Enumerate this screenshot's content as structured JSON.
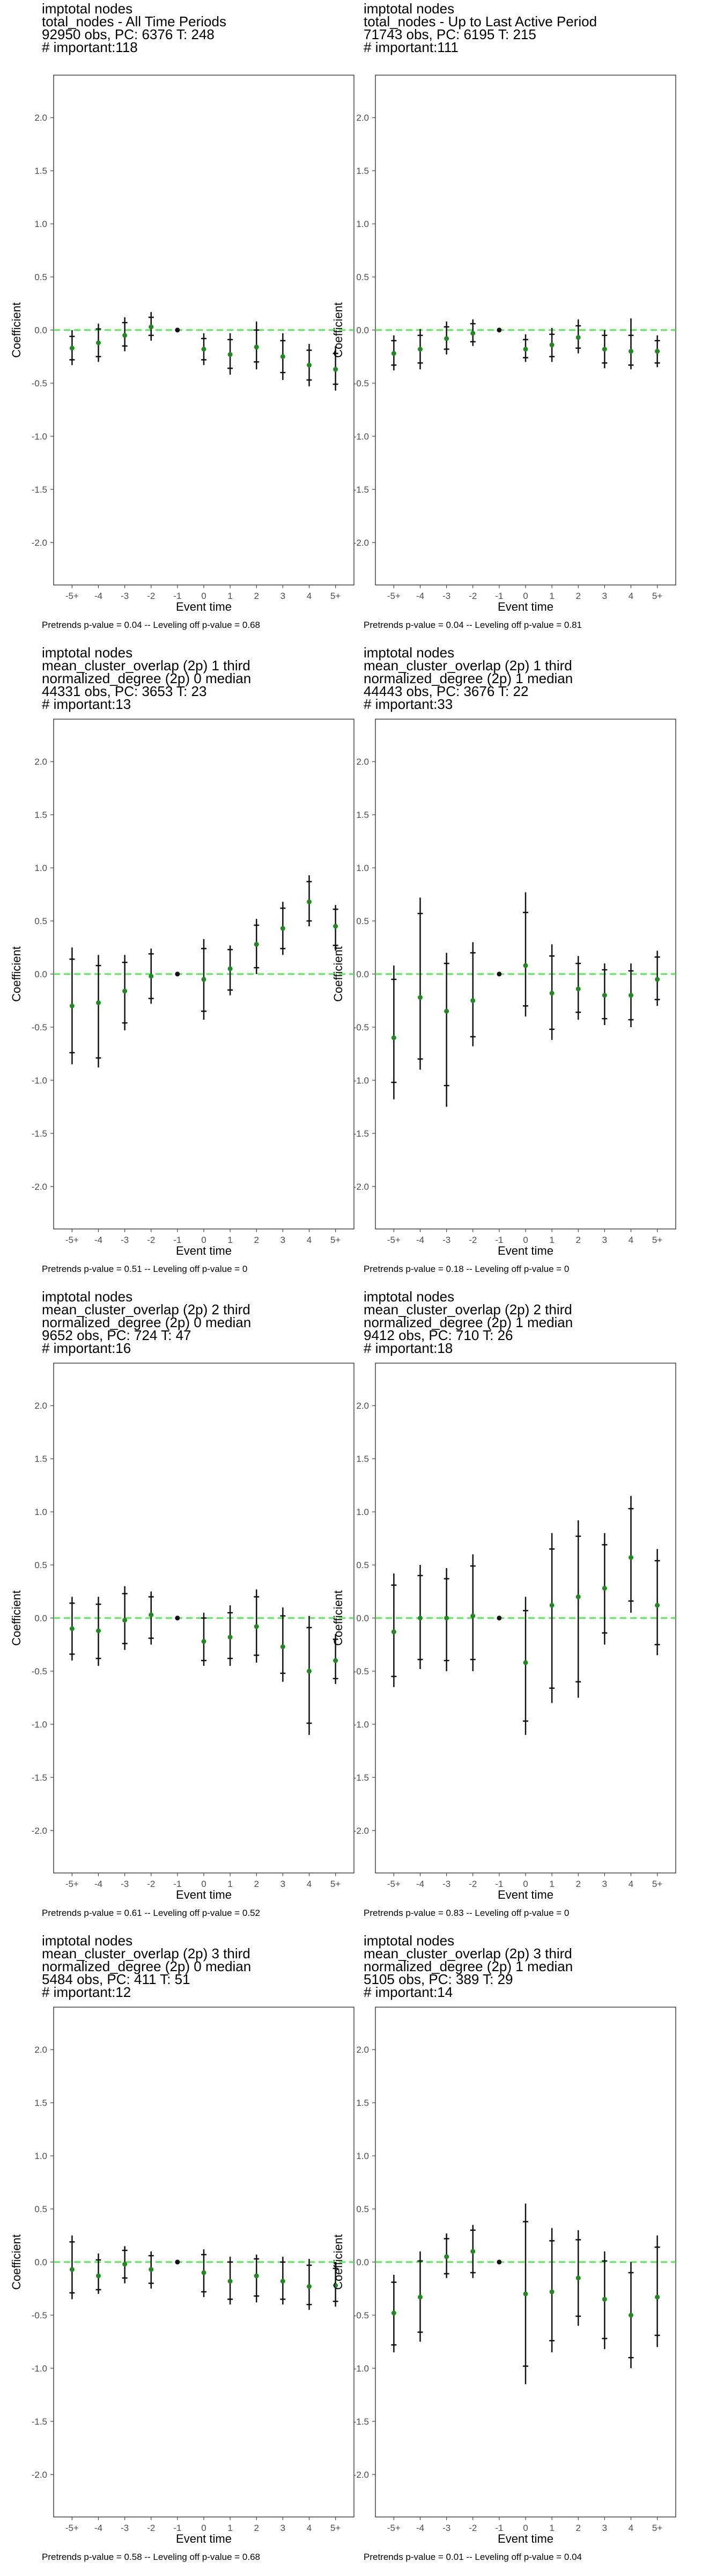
{
  "chart_data": [
    {
      "type": "scatter",
      "title_lines": [
        " imptotal nodes",
        "total_nodes - All Time Periods",
        "92950 obs, PC: 6376 T: 248",
        "# important:118"
      ],
      "xlabel": "Event time",
      "ylabel": "Coefficient",
      "categories": [
        "-5+",
        "-4",
        "-3",
        "-2",
        "-1",
        "0",
        "1",
        "2",
        "3",
        "4",
        "5+"
      ],
      "ylim": [
        -2.4,
        2.4
      ],
      "yticks": [
        "2.0",
        "1.5",
        "1.0",
        "0.5",
        "0.0",
        "-0.5",
        "-1.0",
        "-1.5",
        "-2.0"
      ],
      "estimates": [
        -0.17,
        -0.12,
        -0.05,
        0.03,
        0.0,
        -0.18,
        -0.23,
        -0.16,
        -0.25,
        -0.33,
        -0.37
      ],
      "ci95": [
        [
          -0.33,
          0.0
        ],
        [
          -0.3,
          0.06
        ],
        [
          -0.2,
          0.12
        ],
        [
          -0.1,
          0.17
        ],
        [
          0.0,
          0.0
        ],
        [
          -0.33,
          -0.03
        ],
        [
          -0.42,
          -0.03
        ],
        [
          -0.37,
          0.08
        ],
        [
          -0.47,
          -0.03
        ],
        [
          -0.53,
          -0.13
        ],
        [
          -0.57,
          -0.15
        ]
      ],
      "ci90": [
        [
          -0.28,
          -0.06
        ],
        [
          -0.25,
          0.01
        ],
        [
          -0.15,
          0.07
        ],
        [
          -0.05,
          0.12
        ],
        [
          0.0,
          0.0
        ],
        [
          -0.28,
          -0.08
        ],
        [
          -0.36,
          -0.09
        ],
        [
          -0.3,
          0.0
        ],
        [
          -0.4,
          -0.1
        ],
        [
          -0.47,
          -0.19
        ],
        [
          -0.51,
          -0.22
        ]
      ],
      "reference_line": 0.0,
      "footnote": "Pretrends p-value = 0.04 -- Leveling off p-value = 0.68"
    },
    {
      "type": "scatter",
      "title_lines": [
        " imptotal nodes",
        "total_nodes - Up to Last Active Period",
        "71743 obs, PC: 6195 T: 215",
        "# important:111"
      ],
      "xlabel": "Event time",
      "ylabel": "Coefficient",
      "categories": [
        "-5+",
        "-4",
        "-3",
        "-2",
        "-1",
        "0",
        "1",
        "2",
        "3",
        "4",
        "5+"
      ],
      "ylim": [
        -2.4,
        2.4
      ],
      "yticks": [
        "2.0",
        "1.5",
        "1.0",
        "0.5",
        "0.0",
        "-0.5",
        "-1.0",
        "-1.5",
        "-2.0"
      ],
      "estimates": [
        -0.22,
        -0.18,
        -0.08,
        -0.03,
        0.0,
        -0.18,
        -0.14,
        -0.07,
        -0.18,
        -0.2,
        -0.2
      ],
      "ci95": [
        [
          -0.38,
          -0.05
        ],
        [
          -0.37,
          0.01
        ],
        [
          -0.23,
          0.08
        ],
        [
          -0.15,
          0.1
        ],
        [
          0.0,
          0.0
        ],
        [
          -0.3,
          -0.04
        ],
        [
          -0.3,
          0.02
        ],
        [
          -0.22,
          0.1
        ],
        [
          -0.36,
          0.0
        ],
        [
          -0.37,
          0.11
        ],
        [
          -0.35,
          -0.05
        ]
      ],
      "ci90": [
        [
          -0.33,
          -0.1
        ],
        [
          -0.31,
          -0.05
        ],
        [
          -0.18,
          0.03
        ],
        [
          -0.11,
          0.06
        ],
        [
          0.0,
          0.0
        ],
        [
          -0.26,
          -0.09
        ],
        [
          -0.25,
          -0.04
        ],
        [
          -0.17,
          0.04
        ],
        [
          -0.31,
          -0.05
        ],
        [
          -0.33,
          -0.05
        ],
        [
          -0.31,
          -0.1
        ]
      ],
      "reference_line": 0.0,
      "footnote": "Pretrends p-value = 0.04 -- Leveling off p-value = 0.81"
    },
    {
      "type": "scatter",
      "title_lines": [
        " imptotal nodes",
        "mean_cluster_overlap (2p) 1 third",
        "normalized_degree (2p) 0 median",
        "44331 obs, PC: 3653 T: 23",
        "# important:13"
      ],
      "xlabel": "Event time",
      "ylabel": "Coefficient",
      "categories": [
        "-5+",
        "-4",
        "-3",
        "-2",
        "-1",
        "0",
        "1",
        "2",
        "3",
        "4",
        "5+"
      ],
      "ylim": [
        -2.4,
        2.4
      ],
      "yticks": [
        "2.0",
        "1.5",
        "1.0",
        "0.5",
        "0.0",
        "-0.5",
        "-1.0",
        "-1.5",
        "-2.0"
      ],
      "estimates": [
        -0.3,
        -0.27,
        -0.16,
        -0.02,
        0.0,
        -0.05,
        0.05,
        0.28,
        0.43,
        0.68,
        0.45
      ],
      "ci95": [
        [
          -0.85,
          0.25
        ],
        [
          -0.88,
          0.18
        ],
        [
          -0.53,
          0.18
        ],
        [
          -0.28,
          0.24
        ],
        [
          0.0,
          0.0
        ],
        [
          -0.43,
          0.33
        ],
        [
          -0.2,
          0.27
        ],
        [
          0.0,
          0.52
        ],
        [
          0.18,
          0.68
        ],
        [
          0.45,
          0.93
        ],
        [
          0.22,
          0.65
        ]
      ],
      "ci90": [
        [
          -0.74,
          0.14
        ],
        [
          -0.79,
          0.08
        ],
        [
          -0.46,
          0.11
        ],
        [
          -0.23,
          0.19
        ],
        [
          0.0,
          0.0
        ],
        [
          -0.35,
          0.24
        ],
        [
          -0.15,
          0.23
        ],
        [
          0.06,
          0.46
        ],
        [
          0.24,
          0.62
        ],
        [
          0.5,
          0.87
        ],
        [
          0.27,
          0.61
        ]
      ],
      "reference_line": 0.0,
      "footnote": "Pretrends p-value = 0.51 -- Leveling off p-value = 0"
    },
    {
      "type": "scatter",
      "title_lines": [
        " imptotal nodes",
        "mean_cluster_overlap (2p) 1 third",
        "normalized_degree (2p) 1 median",
        "44443 obs, PC: 3676 T: 22",
        "# important:33"
      ],
      "xlabel": "Event time",
      "ylabel": "Coefficient",
      "categories": [
        "-5+",
        "-4",
        "-3",
        "-2",
        "-1",
        "0",
        "1",
        "2",
        "3",
        "4",
        "5+"
      ],
      "ylim": [
        -2.4,
        2.4
      ],
      "yticks": [
        "2.0",
        "1.5",
        "1.0",
        "0.5",
        "0.0",
        "-0.5",
        "-1.0",
        "-1.5",
        "-2.0"
      ],
      "estimates": [
        -0.6,
        -0.22,
        -0.35,
        -0.25,
        0.0,
        0.08,
        -0.18,
        -0.14,
        -0.2,
        -0.2,
        -0.05
      ],
      "ci95": [
        [
          -1.18,
          0.08
        ],
        [
          -0.9,
          0.72
        ],
        [
          -1.25,
          0.2
        ],
        [
          -0.68,
          0.3
        ],
        [
          0.0,
          0.0
        ],
        [
          -0.4,
          0.77
        ],
        [
          -0.62,
          0.28
        ],
        [
          -0.43,
          0.17
        ],
        [
          -0.48,
          0.1
        ],
        [
          -0.5,
          0.1
        ],
        [
          -0.3,
          0.22
        ]
      ],
      "ci90": [
        [
          -1.02,
          -0.05
        ],
        [
          -0.8,
          0.57
        ],
        [
          -1.05,
          0.1
        ],
        [
          -0.59,
          0.2
        ],
        [
          0.0,
          0.0
        ],
        [
          -0.3,
          0.58
        ],
        [
          -0.52,
          0.17
        ],
        [
          -0.36,
          0.1
        ],
        [
          -0.42,
          0.04
        ],
        [
          -0.43,
          0.03
        ],
        [
          -0.24,
          0.16
        ]
      ],
      "reference_line": 0.0,
      "footnote": "Pretrends p-value = 0.18 -- Leveling off p-value = 0"
    },
    {
      "type": "scatter",
      "title_lines": [
        " imptotal nodes",
        "mean_cluster_overlap (2p) 2 third",
        "normalized_degree (2p) 0 median",
        "9652 obs, PC: 724 T: 47",
        "# important:16"
      ],
      "xlabel": "Event time",
      "ylabel": "Coefficient",
      "categories": [
        "-5+",
        "-4",
        "-3",
        "-2",
        "-1",
        "0",
        "1",
        "2",
        "3",
        "4",
        "5+"
      ],
      "ylim": [
        -2.4,
        2.4
      ],
      "yticks": [
        "2.0",
        "1.5",
        "1.0",
        "0.5",
        "0.0",
        "-0.5",
        "-1.0",
        "-1.5",
        "-2.0"
      ],
      "estimates": [
        -0.1,
        -0.12,
        -0.02,
        0.03,
        0.0,
        -0.22,
        -0.18,
        -0.08,
        -0.27,
        -0.5,
        -0.4
      ],
      "ci95": [
        [
          -0.4,
          0.2
        ],
        [
          -0.45,
          0.2
        ],
        [
          -0.3,
          0.3
        ],
        [
          -0.25,
          0.25
        ],
        [
          0.0,
          0.0
        ],
        [
          -0.45,
          0.05
        ],
        [
          -0.45,
          0.12
        ],
        [
          -0.42,
          0.27
        ],
        [
          -0.6,
          0.1
        ],
        [
          -1.1,
          0.02
        ],
        [
          -0.62,
          -0.15
        ]
      ],
      "ci90": [
        [
          -0.34,
          0.14
        ],
        [
          -0.38,
          0.13
        ],
        [
          -0.24,
          0.23
        ],
        [
          -0.19,
          0.2
        ],
        [
          0.0,
          0.0
        ],
        [
          -0.4,
          0.0
        ],
        [
          -0.38,
          0.05
        ],
        [
          -0.35,
          0.2
        ],
        [
          -0.52,
          0.02
        ],
        [
          -0.99,
          -0.09
        ],
        [
          -0.57,
          -0.2
        ]
      ],
      "reference_line": 0.0,
      "footnote": "Pretrends p-value = 0.61 -- Leveling off p-value = 0.52"
    },
    {
      "type": "scatter",
      "title_lines": [
        " imptotal nodes",
        "mean_cluster_overlap (2p) 2 third",
        "normalized_degree (2p) 1 median",
        "9412 obs, PC: 710 T: 26",
        "# important:18"
      ],
      "xlabel": "Event time",
      "ylabel": "Coefficient",
      "categories": [
        "-5+",
        "-4",
        "-3",
        "-2",
        "-1",
        "0",
        "1",
        "2",
        "3",
        "4",
        "5+"
      ],
      "ylim": [
        -2.4,
        2.4
      ],
      "yticks": [
        "2.0",
        "1.5",
        "1.0",
        "0.5",
        "0.0",
        "-0.5",
        "-1.0",
        "-1.5",
        "-2.0"
      ],
      "estimates": [
        -0.13,
        0.0,
        0.0,
        0.02,
        0.0,
        -0.42,
        0.12,
        0.2,
        0.28,
        0.57,
        0.12
      ],
      "ci95": [
        [
          -0.65,
          0.42
        ],
        [
          -0.48,
          0.5
        ],
        [
          -0.5,
          0.47
        ],
        [
          -0.5,
          0.6
        ],
        [
          0.0,
          0.0
        ],
        [
          -1.1,
          0.2
        ],
        [
          -0.8,
          0.8
        ],
        [
          -0.75,
          0.92
        ],
        [
          -0.25,
          0.8
        ],
        [
          0.05,
          1.15
        ],
        [
          -0.35,
          0.65
        ]
      ],
      "ci90": [
        [
          -0.55,
          0.31
        ],
        [
          -0.39,
          0.4
        ],
        [
          -0.4,
          0.37
        ],
        [
          -0.39,
          0.49
        ],
        [
          0.0,
          0.0
        ],
        [
          -0.97,
          0.07
        ],
        [
          -0.66,
          0.65
        ],
        [
          -0.6,
          0.77
        ],
        [
          -0.14,
          0.69
        ],
        [
          0.16,
          1.03
        ],
        [
          -0.25,
          0.54
        ]
      ],
      "reference_line": 0.0,
      "footnote": "Pretrends p-value = 0.83 -- Leveling off p-value = 0"
    },
    {
      "type": "scatter",
      "title_lines": [
        " imptotal nodes",
        "mean_cluster_overlap (2p) 3 third",
        "normalized_degree (2p) 0 median",
        "5484 obs, PC: 411 T: 51",
        "# important:12"
      ],
      "xlabel": "Event time",
      "ylabel": "Coefficient",
      "categories": [
        "-5+",
        "-4",
        "-3",
        "-2",
        "-1",
        "0",
        "1",
        "2",
        "3",
        "4",
        "5+"
      ],
      "ylim": [
        -2.4,
        2.4
      ],
      "yticks": [
        "2.0",
        "1.5",
        "1.0",
        "0.5",
        "0.0",
        "-0.5",
        "-1.0",
        "-1.5",
        "-2.0"
      ],
      "estimates": [
        -0.07,
        -0.13,
        -0.02,
        -0.07,
        0.0,
        -0.1,
        -0.18,
        -0.13,
        -0.18,
        -0.23,
        -0.22
      ],
      "ci95": [
        [
          -0.35,
          0.25
        ],
        [
          -0.3,
          0.08
        ],
        [
          -0.2,
          0.15
        ],
        [
          -0.25,
          0.1
        ],
        [
          0.0,
          0.0
        ],
        [
          -0.33,
          0.12
        ],
        [
          -0.4,
          0.05
        ],
        [
          -0.38,
          0.07
        ],
        [
          -0.4,
          0.05
        ],
        [
          -0.45,
          0.03
        ],
        [
          -0.42,
          0.0
        ]
      ],
      "ci90": [
        [
          -0.29,
          0.19
        ],
        [
          -0.26,
          0.02
        ],
        [
          -0.15,
          0.11
        ],
        [
          -0.2,
          0.06
        ],
        [
          0.0,
          0.0
        ],
        [
          -0.28,
          0.07
        ],
        [
          -0.35,
          0.0
        ],
        [
          -0.32,
          0.03
        ],
        [
          -0.35,
          0.0
        ],
        [
          -0.4,
          -0.03
        ],
        [
          -0.37,
          -0.06
        ]
      ],
      "reference_line": 0.0,
      "footnote": "Pretrends p-value = 0.58 -- Leveling off p-value = 0.68"
    },
    {
      "type": "scatter",
      "title_lines": [
        " imptotal nodes",
        "mean_cluster_overlap (2p) 3 third",
        "normalized_degree (2p) 1 median",
        "5105 obs, PC: 389 T: 29",
        "# important:14"
      ],
      "xlabel": "Event time",
      "ylabel": "Coefficient",
      "categories": [
        "-5+",
        "-4",
        "-3",
        "-2",
        "-1",
        "0",
        "1",
        "2",
        "3",
        "4",
        "5+"
      ],
      "ylim": [
        -2.4,
        2.4
      ],
      "yticks": [
        "2.0",
        "1.5",
        "1.0",
        "0.5",
        "0.0",
        "-0.5",
        "-1.0",
        "-1.5",
        "-2.0"
      ],
      "estimates": [
        -0.48,
        -0.33,
        0.05,
        0.1,
        0.0,
        -0.3,
        -0.28,
        -0.15,
        -0.35,
        -0.5,
        -0.33
      ],
      "ci95": [
        [
          -0.85,
          -0.12
        ],
        [
          -0.75,
          0.1
        ],
        [
          -0.15,
          0.27
        ],
        [
          -0.15,
          0.35
        ],
        [
          0.0,
          0.0
        ],
        [
          -1.15,
          0.55
        ],
        [
          -0.85,
          0.32
        ],
        [
          -0.6,
          0.3
        ],
        [
          -0.82,
          0.1
        ],
        [
          -1.0,
          0.0
        ],
        [
          -0.8,
          0.25
        ]
      ],
      "ci90": [
        [
          -0.78,
          -0.19
        ],
        [
          -0.66,
          0.01
        ],
        [
          -0.11,
          0.22
        ],
        [
          -0.1,
          0.3
        ],
        [
          0.0,
          0.0
        ],
        [
          -0.98,
          0.38
        ],
        [
          -0.74,
          0.2
        ],
        [
          -0.51,
          0.21
        ],
        [
          -0.72,
          0.01
        ],
        [
          -0.9,
          -0.1
        ],
        [
          -0.69,
          0.14
        ]
      ],
      "reference_line": 0.0,
      "footnote": "Pretrends p-value = 0.01 -- Leveling off p-value = 0.04"
    }
  ]
}
